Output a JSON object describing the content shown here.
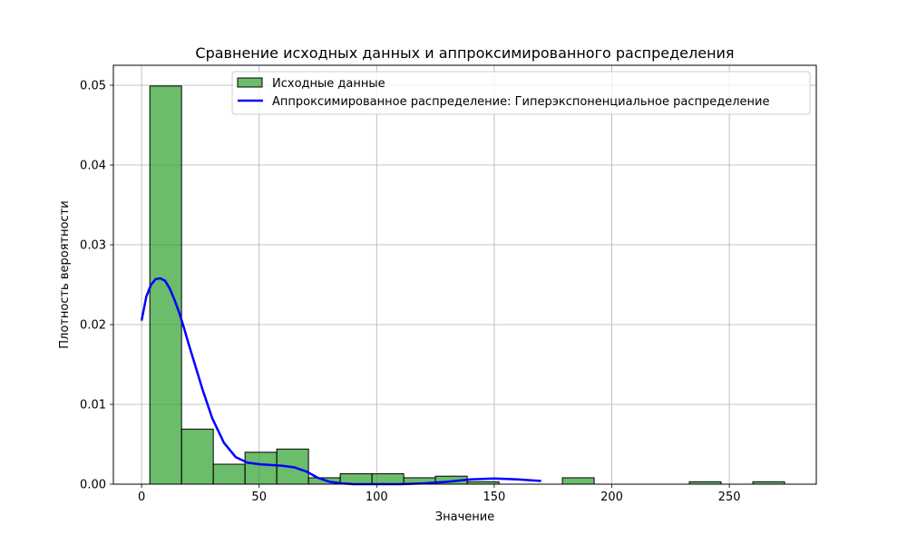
{
  "chart_data": {
    "type": "bar",
    "title": "Сравнение исходных данных и аппроксимированного распределения",
    "xlabel": "Значение",
    "ylabel": "Плотность вероятности",
    "xlim": [
      -12,
      287
    ],
    "ylim": [
      0,
      0.0525
    ],
    "xticks": [
      0,
      50,
      100,
      150,
      200,
      250
    ],
    "yticks": [
      0.0,
      0.01,
      0.02,
      0.03,
      0.04,
      0.05
    ],
    "ytick_labels": [
      "0.00",
      "0.01",
      "0.02",
      "0.03",
      "0.04",
      "0.05"
    ],
    "grid": true,
    "legend_position": "top-right",
    "histogram": {
      "name": "Исходные данные",
      "color": "#2ca02c",
      "edge_color": "#000000",
      "bins": [
        {
          "x0": 3.5,
          "x1": 17.0,
          "density": 0.0499
        },
        {
          "x0": 17.0,
          "x1": 30.5,
          "density": 0.0069
        },
        {
          "x0": 30.5,
          "x1": 44.0,
          "density": 0.0025
        },
        {
          "x0": 44.0,
          "x1": 57.5,
          "density": 0.004
        },
        {
          "x0": 57.5,
          "x1": 71.0,
          "density": 0.0044
        },
        {
          "x0": 71.0,
          "x1": 84.5,
          "density": 0.0008
        },
        {
          "x0": 84.5,
          "x1": 98.0,
          "density": 0.0013
        },
        {
          "x0": 98.0,
          "x1": 111.5,
          "density": 0.0013
        },
        {
          "x0": 111.5,
          "x1": 125.0,
          "density": 0.0008
        },
        {
          "x0": 125.0,
          "x1": 138.5,
          "density": 0.001
        },
        {
          "x0": 138.5,
          "x1": 152.0,
          "density": 0.0003
        },
        {
          "x0": 152.0,
          "x1": 165.5,
          "density": 0.0
        },
        {
          "x0": 165.5,
          "x1": 179.0,
          "density": 0.0
        },
        {
          "x0": 179.0,
          "x1": 192.5,
          "density": 0.0008
        },
        {
          "x0": 192.5,
          "x1": 206.0,
          "density": 0.0
        },
        {
          "x0": 206.0,
          "x1": 219.5,
          "density": 0.0
        },
        {
          "x0": 219.5,
          "x1": 233.0,
          "density": 0.0
        },
        {
          "x0": 233.0,
          "x1": 246.5,
          "density": 0.0003
        },
        {
          "x0": 246.5,
          "x1": 260.0,
          "density": 0.0
        },
        {
          "x0": 260.0,
          "x1": 273.5,
          "density": 0.0003
        }
      ]
    },
    "series": [
      {
        "name": "Аппроксимированное распределение: Гиперэкспоненциальное распределение",
        "color": "#0000ff",
        "x": [
          0,
          2,
          4,
          6,
          8,
          10,
          12,
          14,
          16,
          18,
          20,
          23,
          26,
          30,
          35,
          40,
          45,
          50,
          55,
          60,
          65,
          70,
          75,
          80,
          85,
          90,
          100,
          110,
          120,
          130,
          140,
          150,
          160,
          170
        ],
        "y": [
          0.0205,
          0.0235,
          0.025,
          0.0257,
          0.0258,
          0.0255,
          0.0245,
          0.0231,
          0.0215,
          0.0196,
          0.0176,
          0.0147,
          0.0118,
          0.0083,
          0.0052,
          0.0034,
          0.0027,
          0.0025,
          0.0024,
          0.0023,
          0.0021,
          0.0016,
          0.0008,
          0.0003,
          0.0001,
          0.0,
          0.0,
          0.0,
          0.0001,
          0.0003,
          0.0006,
          0.0007,
          0.0006,
          0.0004
        ]
      }
    ]
  }
}
